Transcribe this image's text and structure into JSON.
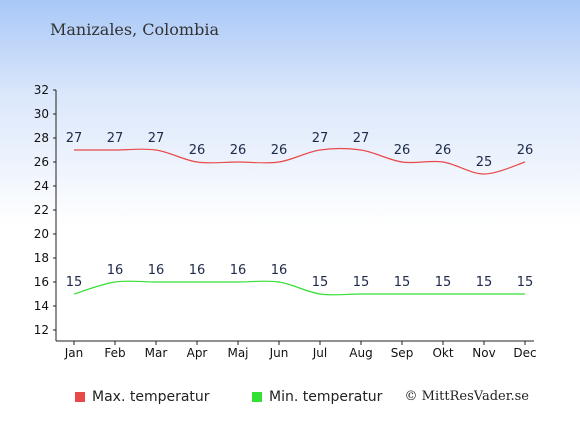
{
  "title": "Manizales, Colombia",
  "credit": "© MittResVader.se",
  "chart_data": {
    "type": "line",
    "title": "Manizales, Colombia",
    "categories": [
      "Jan",
      "Feb",
      "Mar",
      "Apr",
      "Maj",
      "Jun",
      "Jul",
      "Aug",
      "Sep",
      "Okt",
      "Nov",
      "Dec"
    ],
    "yticks": [
      "12",
      "14",
      "16",
      "18",
      "20",
      "22",
      "24",
      "26",
      "28",
      "30",
      "32"
    ],
    "ylim": [
      12,
      32
    ],
    "grid": false,
    "legend_position": "bottom-left",
    "series": [
      {
        "name": "Max. temperatur",
        "color": "#e84a4a",
        "values": [
          27,
          27,
          27,
          26,
          26,
          26,
          27,
          27,
          26,
          26,
          25,
          26
        ]
      },
      {
        "name": "Min. temperatur",
        "color": "#33e033",
        "values": [
          15,
          16,
          16,
          16,
          16,
          16,
          15,
          15,
          15,
          15,
          15,
          15
        ]
      }
    ]
  }
}
